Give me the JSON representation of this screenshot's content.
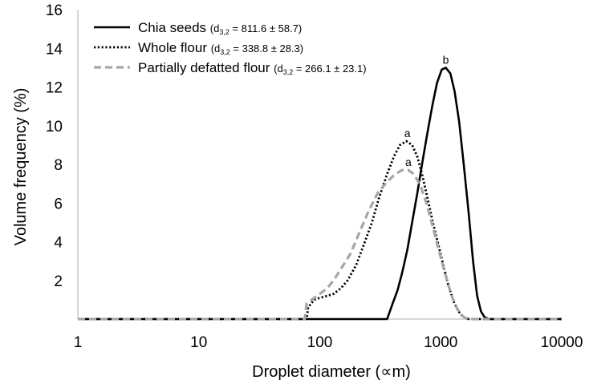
{
  "chart_data": {
    "type": "line",
    "xlabel": "Droplet diameter (∝m)",
    "ylabel": "Volume frequency (%)",
    "xscale": "log",
    "xlim": [
      1,
      10000
    ],
    "ylim": [
      0,
      16
    ],
    "x_ticks": [
      "1",
      "10",
      "100",
      "1000",
      "10000"
    ],
    "y_ticks": [
      "2",
      "4",
      "6",
      "8",
      "10",
      "12",
      "14",
      "16"
    ],
    "grid": false,
    "legend_position": "top-left",
    "series": [
      {
        "name": "Chia seeds",
        "stat_prefix": "(d",
        "stat_sub": "3,2",
        "stat_value": " = 811.6 ± 58.7)",
        "color": "#000000",
        "style": "solid",
        "x": [
          1,
          360,
          400,
          440,
          480,
          530,
          580,
          640,
          700,
          770,
          850,
          930,
          1020,
          1100,
          1200,
          1300,
          1420,
          1550,
          1700,
          1850,
          2000,
          2150,
          2300,
          2500,
          10000
        ],
        "y": [
          0,
          0,
          0.8,
          1.5,
          2.4,
          3.6,
          5.0,
          6.5,
          8.0,
          9.5,
          11.0,
          12.2,
          12.9,
          13.0,
          12.7,
          11.8,
          10.2,
          8.0,
          5.5,
          3.0,
          1.2,
          0.4,
          0.1,
          0,
          0
        ]
      },
      {
        "name": "Whole flour",
        "stat_prefix": "(d",
        "stat_sub": "3,2",
        "stat_value": " = 338.8 ± 28.3)",
        "color": "#000000",
        "style": "dotted",
        "x": [
          1,
          78,
          80,
          90,
          100,
          115,
          130,
          150,
          170,
          200,
          230,
          270,
          310,
          360,
          410,
          460,
          520,
          580,
          640,
          700,
          780,
          860,
          950,
          1050,
          1150,
          1280,
          1400,
          1550,
          1700,
          1800,
          10000
        ],
        "y": [
          0,
          0,
          0.6,
          1.0,
          1.1,
          1.2,
          1.3,
          1.6,
          2.0,
          2.8,
          3.8,
          5.0,
          6.3,
          7.5,
          8.4,
          9.0,
          9.2,
          9.0,
          8.4,
          7.5,
          6.2,
          5.0,
          3.9,
          2.8,
          1.8,
          0.9,
          0.4,
          0.1,
          0,
          0,
          0
        ]
      },
      {
        "name": "Partially defatted flour",
        "stat_prefix": "(d",
        "stat_sub": "3,2",
        "stat_value": " = 266.1 ± 23.1)",
        "color": "#a6a6a6",
        "style": "dashed",
        "x": [
          1,
          75,
          78,
          90,
          100,
          115,
          130,
          150,
          180,
          210,
          250,
          300,
          360,
          420,
          480,
          540,
          600,
          680,
          760,
          850,
          950,
          1050,
          1150,
          1250,
          1350,
          1480,
          1600,
          1700,
          10000
        ],
        "y": [
          0,
          0,
          0.8,
          1.1,
          1.3,
          1.6,
          2.0,
          2.6,
          3.4,
          4.4,
          5.5,
          6.5,
          7.1,
          7.5,
          7.7,
          7.7,
          7.5,
          6.9,
          6.0,
          4.9,
          3.7,
          2.7,
          1.8,
          1.1,
          0.6,
          0.2,
          0.05,
          0,
          0
        ]
      }
    ],
    "annotations": [
      {
        "text": "b",
        "x": 1100,
        "y": 13.0
      },
      {
        "text": "a",
        "x": 530,
        "y": 9.2
      },
      {
        "text": "a",
        "x": 540,
        "y": 7.7
      }
    ]
  }
}
